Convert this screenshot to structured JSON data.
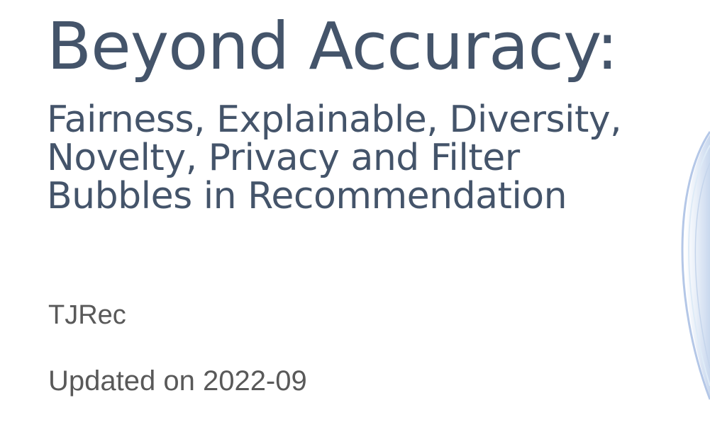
{
  "slide": {
    "title": "Beyond Accuracy:",
    "subtitle_lines": [
      "Fairness, Explainable, Diversity,",
      "Novelty, Privacy and Filter",
      "Bubbles in Recommendation"
    ],
    "author": "TJRec",
    "updated": "Updated on 2022-09"
  },
  "colors": {
    "title": "#44546a",
    "body": "#595959",
    "decor_blue": "#b4c7e7",
    "decor_light": "#deebf7"
  },
  "decor": {
    "icon": "swirl-arc-decoration"
  }
}
